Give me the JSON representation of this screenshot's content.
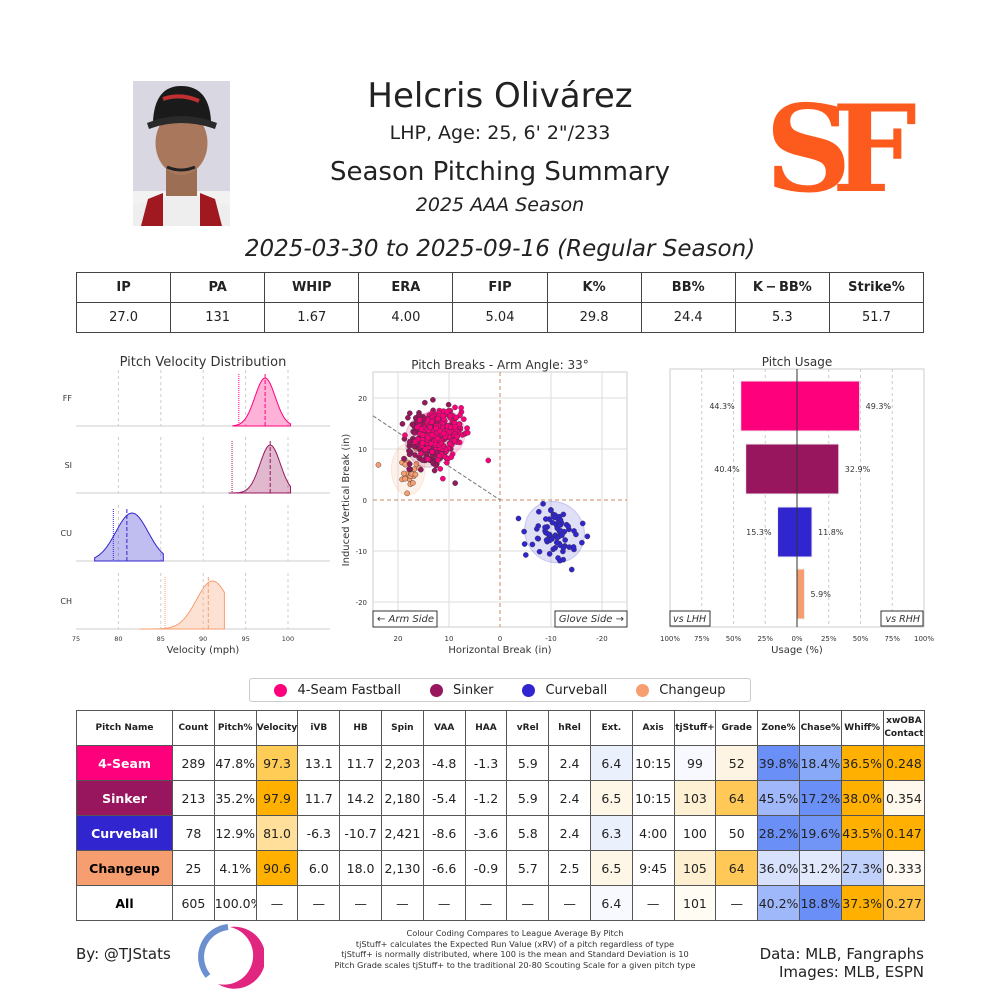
{
  "header": {
    "name": "Helcris Olivárez",
    "bio": "LHP, Age: 25, 6' 2\"/233",
    "title": "Season Pitching Summary",
    "season": "2025 AAA Season",
    "date_range": "2025-03-30 to 2025-09-16 (Regular Season)",
    "logo_text": "SF",
    "logo_color": "#FD5A1E"
  },
  "stats": {
    "headers": [
      "IP",
      "PA",
      "WHIP",
      "ERA",
      "FIP",
      "K%",
      "BB%",
      "K − BB%",
      "Strike%"
    ],
    "values": [
      "27.0",
      "131",
      "1.67",
      "4.00",
      "5.04",
      "29.8",
      "24.4",
      "5.3",
      "51.7"
    ]
  },
  "pitch_colors": {
    "FF": "#FF007D",
    "SI": "#98165D",
    "CU": "#3025CE",
    "CH": "#F79E70"
  },
  "chart_data": [
    {
      "type": "area",
      "title": "Pitch Velocity Distribution",
      "xlabel": "Velocity (mph)",
      "xlim": [
        75,
        105
      ],
      "xticks": [
        "75",
        "80",
        "85",
        "90",
        "95",
        "100"
      ],
      "grid": true,
      "series": [
        {
          "name": "FF",
          "mean": 97.3,
          "league_avg": 94.2,
          "range": [
            93.5,
            100.3
          ]
        },
        {
          "name": "SI",
          "mean": 97.9,
          "league_avg": 93.4,
          "range": [
            93.0,
            100.3
          ]
        },
        {
          "name": "CU",
          "mean": 81.0,
          "league_avg": 79.4,
          "range": [
            77.2,
            85.3
          ]
        },
        {
          "name": "CH",
          "mean": 90.6,
          "league_avg": 85.5,
          "range": [
            82.5,
            92.5
          ]
        }
      ]
    },
    {
      "type": "scatter",
      "title": "Pitch Breaks - Arm Angle: 33°",
      "xlabel": "Horizontal Break (in)",
      "ylabel": "Induced Vertical Break (in)",
      "xlim": [
        25,
        -25
      ],
      "ylim": [
        -25,
        25
      ],
      "xticks": [
        "20",
        "10",
        "0",
        "-10",
        "-20"
      ],
      "yticks": [
        "20",
        "10",
        "0",
        "-10",
        "-20"
      ],
      "grid": true,
      "annotations": [
        "← Arm Side",
        "Glove Side →"
      ],
      "series": [
        {
          "name": "FF",
          "hb": 11.7,
          "ivb": 13.1,
          "count": 289
        },
        {
          "name": "SI",
          "hb": 14.2,
          "ivb": 11.7,
          "count": 213
        },
        {
          "name": "CU",
          "hb": -10.7,
          "ivb": -6.3,
          "count": 78
        },
        {
          "name": "CH",
          "hb": 18.0,
          "ivb": 6.0,
          "count": 25
        }
      ]
    },
    {
      "type": "bar",
      "title": "Pitch Usage",
      "xlabel": "Usage (%)",
      "xlim": [
        -100,
        100
      ],
      "xticks": [
        "100%",
        "75%",
        "50%",
        "25%",
        "0%",
        "25%",
        "50%",
        "75%",
        "100%"
      ],
      "annotations": [
        "vs LHH",
        "vs RHH"
      ],
      "categories": [
        "FF",
        "SI",
        "CU",
        "CH"
      ],
      "series": [
        {
          "name": "vs LHH",
          "values": [
            44.3,
            40.4,
            15.3,
            0
          ]
        },
        {
          "name": "vs RHH",
          "values": [
            49.3,
            32.9,
            11.8,
            5.9
          ]
        }
      ],
      "labels_lhh": [
        "44.3%",
        "40.4%",
        "15.3%",
        ""
      ],
      "labels_rhh": [
        "49.3%",
        "32.9%",
        "11.8%",
        "5.9%"
      ]
    }
  ],
  "legend": [
    "4-Seam Fastball",
    "Sinker",
    "Curveball",
    "Changeup"
  ],
  "pitch_table": {
    "headers": [
      "Pitch Name",
      "Count",
      "Pitch%",
      "Velocity",
      "iVB",
      "HB",
      "Spin",
      "VAA",
      "HAA",
      "vRel",
      "hRel",
      "Ext.",
      "Axis",
      "tjStuff+",
      "Grade",
      "Zone%",
      "Chase%",
      "Whiff%",
      "xwOBA Contact"
    ],
    "rows": [
      {
        "cells": [
          "4-Seam",
          "289",
          "47.8%",
          "97.3",
          "13.1",
          "11.7",
          "2,203",
          "-4.8",
          "-1.3",
          "5.9",
          "2.4",
          "6.4",
          "10:15",
          "99",
          "52",
          "39.8%",
          "18.4%",
          "36.5%",
          "0.248"
        ],
        "name_bg": "#FF007D",
        "name_fg": "#fff",
        "bg": {
          "3": "#FFCC55",
          "11": "#EAF0FC",
          "13": "#F7F9FE",
          "14": "#FEF4E3",
          "15": "#6A8FF7",
          "16": "#88A8F8",
          "17": "#FFB000",
          "18": "#FFB000"
        }
      },
      {
        "cells": [
          "Sinker",
          "213",
          "35.2%",
          "97.9",
          "11.7",
          "14.2",
          "2,180",
          "-5.4",
          "-1.2",
          "5.9",
          "2.4",
          "6.5",
          "10:15",
          "103",
          "64",
          "45.5%",
          "17.2%",
          "38.0%",
          "0.354"
        ],
        "name_bg": "#98165D",
        "name_fg": "#fff",
        "bg": {
          "3": "#FFB000",
          "11": "#FEF6E6",
          "13": "#FEF0D2",
          "14": "#FFC857",
          "15": "#A0B8FA",
          "16": "#6A8FF7",
          "17": "#FFB000",
          "18": "#FFF8EC"
        }
      },
      {
        "cells": [
          "Curveball",
          "78",
          "12.9%",
          "81.0",
          "-6.3",
          "-10.7",
          "2,421",
          "-8.6",
          "-3.6",
          "5.8",
          "2.4",
          "6.3",
          "4:00",
          "100",
          "50",
          "28.2%",
          "19.6%",
          "43.5%",
          "0.147"
        ],
        "name_bg": "#3025CE",
        "name_fg": "#fff",
        "bg": {
          "3": "#FFDF9A",
          "11": "#EAF0FC",
          "15": "#6A8FF7",
          "16": "#7195F7",
          "17": "#FFB000",
          "18": "#FFB000"
        }
      },
      {
        "cells": [
          "Changeup",
          "25",
          "4.1%",
          "90.6",
          "6.0",
          "18.0",
          "2,130",
          "-6.6",
          "-0.9",
          "5.7",
          "2.5",
          "6.5",
          "9:45",
          "105",
          "64",
          "36.0%",
          "31.2%",
          "27.3%",
          "0.333"
        ],
        "name_bg": "#F79E70",
        "name_fg": "#000",
        "bg": {
          "3": "#FFB000",
          "11": "#FEF6E6",
          "13": "#FEEFD0",
          "14": "#FFC857",
          "15": "#D7E1FB",
          "16": "#E2E9FC",
          "17": "#BFD0FA",
          "18": "#FFFBF4"
        }
      },
      {
        "cells": [
          "All",
          "605",
          "100.0%",
          "—",
          "—",
          "—",
          "—",
          "—",
          "—",
          "—",
          "—",
          "6.4",
          "—",
          "101",
          "—",
          "40.2%",
          "18.8%",
          "37.3%",
          "0.277"
        ],
        "name_bg": "#fff",
        "name_fg": "#000",
        "bg": {
          "11": "#F7F9FE",
          "13": "#FFFCF3",
          "15": "#9FB8FA",
          "16": "#6A8FF7",
          "17": "#FFB000",
          "18": "#FFC040"
        }
      }
    ]
  },
  "footer": {
    "by": "By: @TJStats",
    "notes": [
      "Colour Coding Compares to League Average By Pitch",
      "tjStuff+ calculates the Expected Run Value (xRV) of a pitch regardless of type",
      "tjStuff+ is normally distributed, where 100 is the mean and Standard Deviation is 10",
      "Pitch Grade scales tjStuff+ to the traditional 20-80 Scouting Scale for a given pitch type"
    ],
    "source": "Data: MLB, Fangraphs",
    "images": "Images: MLB, ESPN"
  }
}
